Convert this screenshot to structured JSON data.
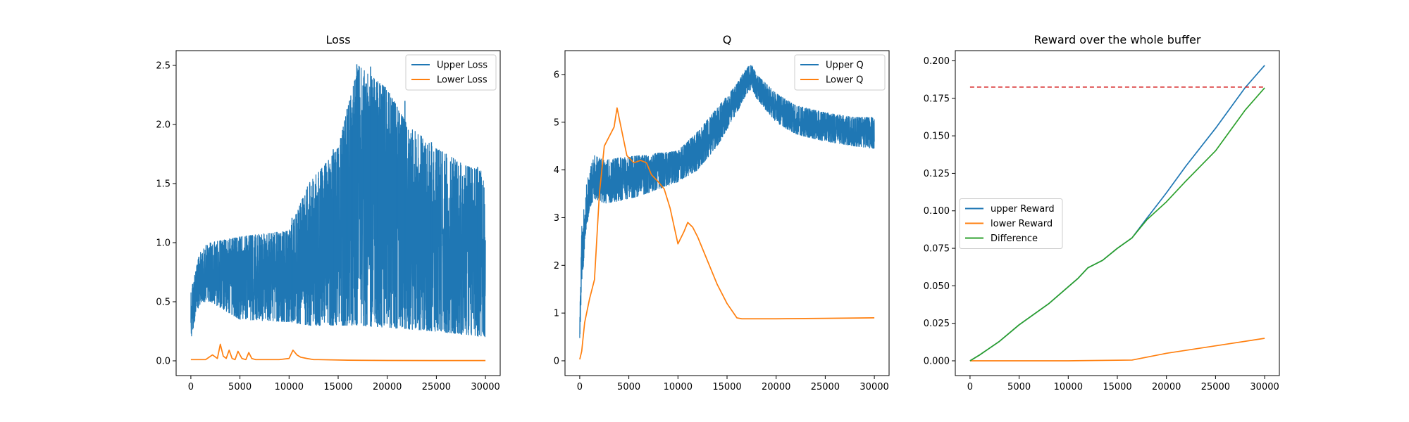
{
  "chart_data": [
    {
      "type": "line",
      "title": "Loss",
      "xlim": [
        -1500,
        31500
      ],
      "ylim": [
        -0.125,
        2.625
      ],
      "xticks": [
        0,
        5000,
        10000,
        15000,
        20000,
        25000,
        30000
      ],
      "yticks": [
        0.0,
        0.5,
        1.0,
        1.5,
        2.0,
        2.5
      ],
      "xtick_labels": [
        "0",
        "5000",
        "10000",
        "15000",
        "20000",
        "25000",
        "30000"
      ],
      "ytick_labels": [
        "0.0",
        "0.5",
        "1.0",
        "1.5",
        "2.0",
        "2.5"
      ],
      "grid": false,
      "legend_position": "upper right",
      "series": [
        {
          "name": "Upper Loss",
          "color": "#1f77b4",
          "style": "noisy band",
          "x": [
            0,
            300,
            1000,
            2000,
            5000,
            10000,
            12000,
            15000,
            17000,
            20000,
            22000,
            25000,
            28000,
            30000
          ],
          "lower": [
            0.17,
            0.3,
            0.5,
            0.5,
            0.35,
            0.33,
            0.3,
            0.3,
            0.3,
            0.28,
            0.27,
            0.25,
            0.22,
            0.2
          ],
          "upper": [
            0.6,
            0.7,
            0.95,
            1.0,
            1.05,
            1.1,
            1.5,
            1.8,
            2.5,
            2.3,
            2.0,
            1.8,
            1.65,
            1.6
          ],
          "spikes": [
            [
              3000,
              1.02
            ],
            [
              10300,
              1.21
            ],
            [
              12100,
              1.5
            ],
            [
              14500,
              1.79
            ],
            [
              15900,
              2.13
            ],
            [
              16400,
              2.1
            ],
            [
              16900,
              2.51
            ],
            [
              17600,
              2.2
            ],
            [
              18300,
              2.49
            ],
            [
              19000,
              2.27
            ],
            [
              21000,
              2.15
            ],
            [
              21800,
              2.2
            ],
            [
              24500,
              1.85
            ],
            [
              29200,
              1.64
            ]
          ]
        },
        {
          "name": "Lower Loss",
          "color": "#ff7f0e",
          "style": "line",
          "x": [
            0,
            1500,
            2200,
            2700,
            3000,
            3300,
            3600,
            3900,
            4200,
            4500,
            4800,
            5200,
            5600,
            5900,
            6200,
            6600,
            7000,
            8000,
            9000,
            10000,
            10400,
            10800,
            11200,
            11800,
            12500,
            13000,
            16000,
            20000,
            25000,
            30000
          ],
          "y": [
            0.01,
            0.01,
            0.05,
            0.02,
            0.14,
            0.04,
            0.02,
            0.09,
            0.02,
            0.01,
            0.08,
            0.02,
            0.01,
            0.07,
            0.02,
            0.01,
            0.01,
            0.01,
            0.01,
            0.02,
            0.09,
            0.05,
            0.03,
            0.02,
            0.01,
            0.01,
            0.005,
            0.003,
            0.002,
            0.002
          ]
        }
      ]
    },
    {
      "type": "line",
      "title": "Q",
      "xlim": [
        -1500,
        31500
      ],
      "ylim": [
        -0.31,
        6.5
      ],
      "xticks": [
        0,
        5000,
        10000,
        15000,
        20000,
        25000,
        30000
      ],
      "yticks": [
        0,
        1,
        2,
        3,
        4,
        5,
        6
      ],
      "xtick_labels": [
        "0",
        "5000",
        "10000",
        "15000",
        "20000",
        "25000",
        "30000"
      ],
      "ytick_labels": [
        "0",
        "1",
        "2",
        "3",
        "4",
        "5",
        "6"
      ],
      "grid": false,
      "legend_position": "upper right",
      "series": [
        {
          "name": "Upper Q",
          "color": "#1f77b4",
          "style": "noisy band",
          "x": [
            0,
            200,
            600,
            1000,
            1500,
            2500,
            4000,
            6000,
            8000,
            10000,
            12000,
            14000,
            16000,
            17000,
            17500,
            18000,
            20000,
            22000,
            25000,
            28000,
            30000
          ],
          "lower": [
            0.4,
            1.5,
            2.6,
            3.2,
            3.4,
            3.3,
            3.35,
            3.45,
            3.6,
            3.75,
            4.0,
            4.5,
            5.2,
            5.6,
            5.7,
            5.5,
            5.0,
            4.75,
            4.6,
            4.5,
            4.45
          ],
          "upper": [
            0.9,
            2.8,
            3.6,
            4.0,
            4.3,
            4.2,
            4.25,
            4.3,
            4.35,
            4.4,
            4.8,
            5.3,
            5.8,
            6.15,
            6.2,
            6.0,
            5.6,
            5.35,
            5.2,
            5.1,
            5.1
          ]
        },
        {
          "name": "Lower Q",
          "color": "#ff7f0e",
          "style": "line",
          "x": [
            0,
            200,
            500,
            1000,
            1500,
            2000,
            2500,
            3000,
            3500,
            3800,
            4200,
            4800,
            5500,
            6200,
            6800,
            7300,
            8000,
            8600,
            9200,
            10000,
            10600,
            11000,
            11500,
            12000,
            13000,
            14000,
            15000,
            16000,
            16500,
            20000,
            25000,
            30000
          ],
          "y": [
            0.03,
            0.2,
            0.8,
            1.3,
            1.7,
            3.5,
            4.5,
            4.7,
            4.9,
            5.3,
            4.9,
            4.3,
            4.15,
            4.2,
            4.15,
            3.9,
            3.75,
            3.6,
            3.2,
            2.45,
            2.7,
            2.9,
            2.8,
            2.6,
            2.1,
            1.6,
            1.2,
            0.9,
            0.88,
            0.88,
            0.89,
            0.9
          ]
        }
      ]
    },
    {
      "type": "line",
      "title": "Reward over the whole buffer",
      "xlim": [
        -1500,
        31500
      ],
      "ylim": [
        -0.00985,
        0.2068
      ],
      "xticks": [
        0,
        5000,
        10000,
        15000,
        20000,
        25000,
        30000
      ],
      "yticks": [
        0.0,
        0.025,
        0.05,
        0.075,
        0.1,
        0.125,
        0.15,
        0.175,
        0.2
      ],
      "xtick_labels": [
        "0",
        "5000",
        "10000",
        "15000",
        "20000",
        "25000",
        "30000"
      ],
      "ytick_labels": [
        "0.000",
        "0.025",
        "0.050",
        "0.075",
        "0.100",
        "0.125",
        "0.150",
        "0.175",
        "0.200"
      ],
      "grid": false,
      "legend_position": "center left",
      "series": [
        {
          "name": "upper Reward",
          "color": "#1f77b4",
          "style": "line",
          "x": [
            0,
            1000,
            3000,
            5000,
            8000,
            11000,
            12000,
            13500,
            15000,
            16500,
            18000,
            20000,
            22000,
            25000,
            28000,
            30000
          ],
          "y": [
            0.0,
            0.004,
            0.013,
            0.024,
            0.038,
            0.055,
            0.062,
            0.067,
            0.075,
            0.082,
            0.095,
            0.112,
            0.13,
            0.155,
            0.182,
            0.197
          ]
        },
        {
          "name": "lower Reward",
          "color": "#ff7f0e",
          "style": "line",
          "x": [
            0,
            5000,
            10000,
            16500,
            20000,
            25000,
            30000
          ],
          "y": [
            0.0,
            0.0,
            0.0,
            0.0005,
            0.005,
            0.01,
            0.015
          ]
        },
        {
          "name": "Difference",
          "color": "#2ca02c",
          "style": "line",
          "x": [
            0,
            1000,
            3000,
            5000,
            8000,
            11000,
            12000,
            13500,
            15000,
            16500,
            18000,
            20000,
            22000,
            25000,
            28000,
            30000
          ],
          "y": [
            0.0,
            0.004,
            0.013,
            0.024,
            0.038,
            0.055,
            0.062,
            0.067,
            0.075,
            0.082,
            0.094,
            0.106,
            0.12,
            0.14,
            0.167,
            0.182
          ]
        },
        {
          "name": "",
          "color": "#d62728",
          "style": "dashed",
          "x": [
            0,
            30000
          ],
          "y": [
            0.1825,
            0.1825
          ],
          "in_legend": false
        }
      ]
    }
  ]
}
